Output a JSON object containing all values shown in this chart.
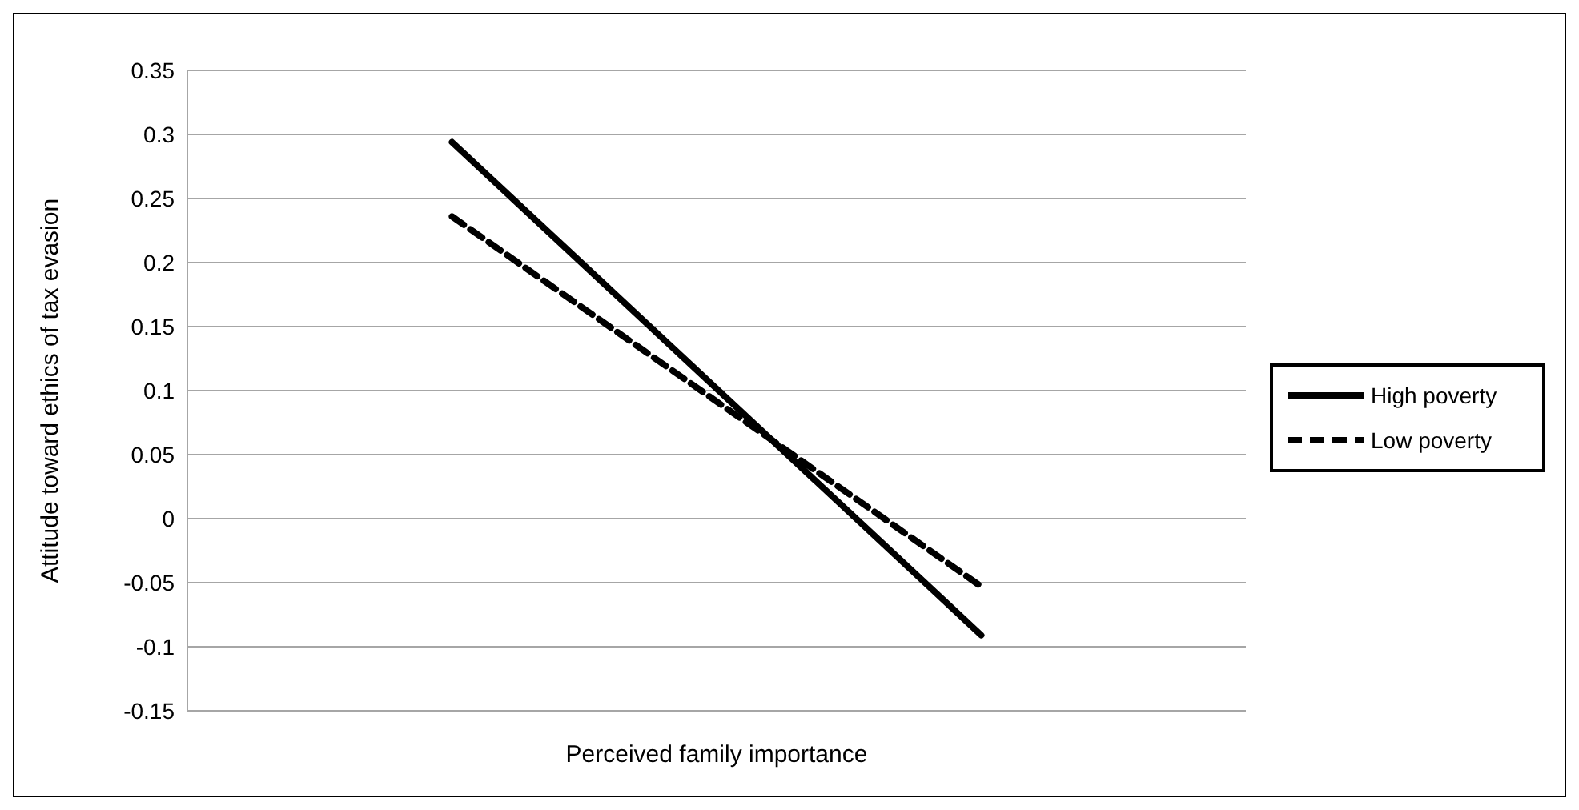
{
  "chart_data": {
    "type": "line",
    "xlabel": "Perceived family importance",
    "ylabel": "Attitude toward ethics of tax evasion",
    "categories": [
      null,
      null
    ],
    "series": [
      {
        "name": "High poverty",
        "color": "#000000",
        "line_style": "solid",
        "values": [
          0.294,
          -0.091
        ]
      },
      {
        "name": "Low poverty",
        "color": "#000000",
        "line_style": "dashed",
        "values": [
          0.236,
          -0.053
        ]
      }
    ],
    "ylim": [
      -0.15,
      0.35
    ],
    "yticks": [
      -0.15,
      -0.1,
      -0.05,
      0,
      0.05,
      0.1,
      0.15,
      0.2,
      0.25,
      0.3,
      0.35
    ],
    "grid": "y",
    "legend": "right",
    "marker": "none"
  }
}
